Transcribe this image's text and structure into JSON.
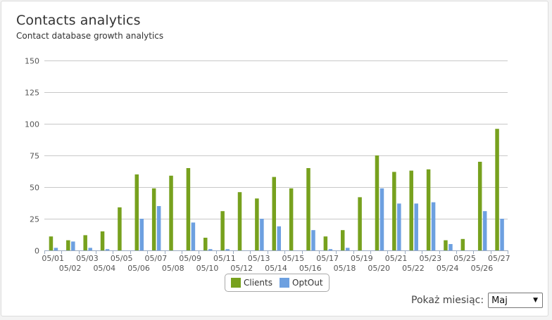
{
  "page": {
    "title": "Contacts analytics",
    "subtitle": "Contact database growth analytics"
  },
  "colors": {
    "clients": "#77a11e",
    "optout": "#6da0e0",
    "grid": "#c8c8c8",
    "axis": "#9aaac0"
  },
  "legend": {
    "clients_label": "Clients",
    "optout_label": "OptOut"
  },
  "month_picker": {
    "label": "Pokaż miesiąc:",
    "selected": "Maj"
  },
  "chart_data": {
    "type": "bar",
    "categories": [
      "05/01",
      "05/02",
      "05/03",
      "05/04",
      "05/05",
      "05/06",
      "05/07",
      "05/08",
      "05/09",
      "05/10",
      "05/11",
      "05/12",
      "05/13",
      "05/14",
      "05/15",
      "05/16",
      "05/17",
      "05/18",
      "05/19",
      "05/20",
      "05/21",
      "05/22",
      "05/23",
      "05/24",
      "05/25",
      "05/26",
      "05/27"
    ],
    "series": [
      {
        "name": "Clients",
        "values": [
          11,
          8,
          12,
          15,
          34,
          60,
          49,
          59,
          65,
          10,
          31,
          46,
          41,
          58,
          49,
          65,
          11,
          16,
          42,
          75,
          62,
          63,
          64,
          8,
          9,
          70,
          96
        ]
      },
      {
        "name": "OptOut",
        "values": [
          2,
          7,
          2,
          1,
          0,
          25,
          35,
          0,
          22,
          1,
          1,
          0,
          25,
          19,
          0,
          16,
          1,
          2,
          0,
          49,
          37,
          37,
          38,
          5,
          0,
          31,
          25
        ]
      }
    ],
    "ylim": [
      0,
      150
    ],
    "yticks": [
      0,
      25,
      50,
      75,
      100,
      125,
      150
    ],
    "grid": true,
    "legend_position": "bottom-center"
  }
}
